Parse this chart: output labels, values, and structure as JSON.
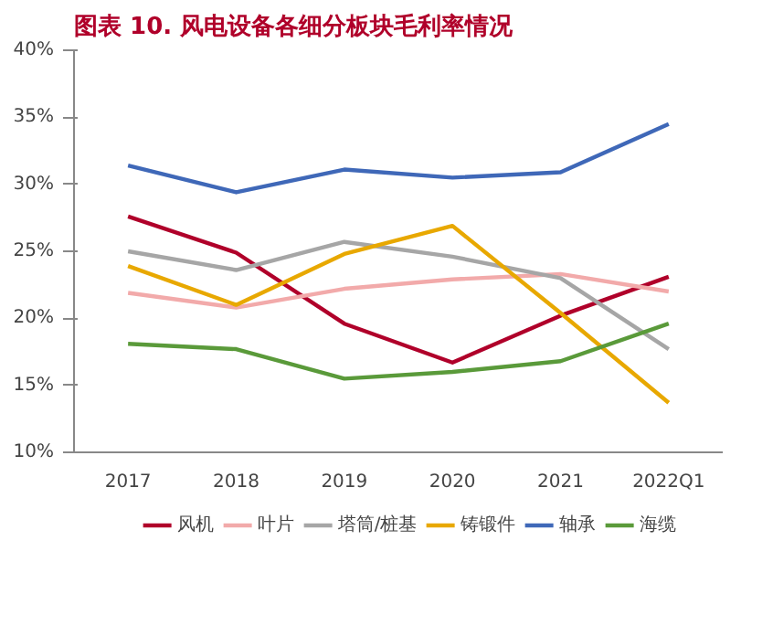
{
  "chart_data": {
    "type": "line",
    "title": "图表 10. 风电设备各细分板块毛利率情况",
    "categories": [
      "2017",
      "2018",
      "2019",
      "2020",
      "2021",
      "2022Q1"
    ],
    "series": [
      {
        "name": "风机",
        "color": "#b0002a",
        "values": [
          27.6,
          24.9,
          19.6,
          16.7,
          20.2,
          23.1
        ]
      },
      {
        "name": "叶片",
        "color": "#f2aaaa",
        "values": [
          21.9,
          20.8,
          22.2,
          22.9,
          23.3,
          22.0
        ]
      },
      {
        "name": "塔筒/桩基",
        "color": "#a6a6a6",
        "values": [
          25.0,
          23.6,
          25.7,
          24.6,
          23.0,
          17.7
        ]
      },
      {
        "name": "铸锻件",
        "color": "#e8a800",
        "values": [
          23.9,
          21.0,
          24.8,
          26.9,
          20.4,
          13.7
        ]
      },
      {
        "name": "轴承",
        "color": "#3f68b8",
        "values": [
          31.4,
          29.4,
          31.1,
          30.5,
          30.9,
          34.5
        ]
      },
      {
        "name": "海缆",
        "color": "#5a9a3a",
        "values": [
          18.1,
          17.7,
          15.5,
          16.0,
          16.8,
          19.6
        ]
      }
    ],
    "ylim": [
      10,
      40
    ],
    "yticks": [
      {
        "value": 10,
        "label": "10%"
      },
      {
        "value": 15,
        "label": "15%"
      },
      {
        "value": 20,
        "label": "20%"
      },
      {
        "value": 25,
        "label": "25%"
      },
      {
        "value": 30,
        "label": "30%"
      },
      {
        "value": 35,
        "label": "35%"
      },
      {
        "value": 40,
        "label": "40%"
      }
    ],
    "grid": false,
    "legend": "bottom",
    "marker": "none",
    "line_style": "solid"
  }
}
